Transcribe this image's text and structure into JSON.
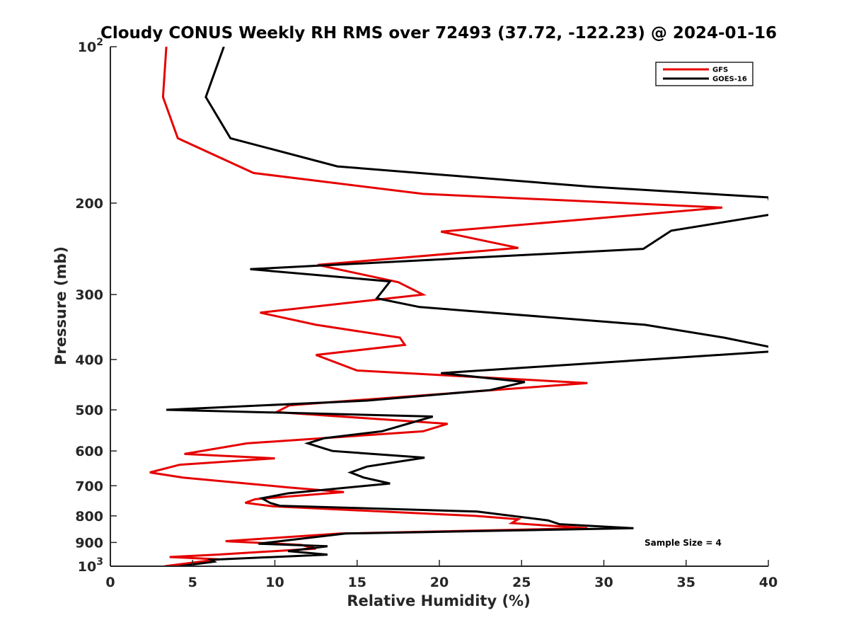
{
  "chart_data": {
    "type": "line",
    "title": "Cloudy CONUS Weekly RH RMS over 72493 (37.72, -122.23) @ 2024-01-16",
    "xlabel": "Relative Humidity (%)",
    "ylabel": "Pressure (mb)",
    "xlim": [
      0,
      40
    ],
    "ylim": [
      100,
      1000
    ],
    "yscale": "log",
    "y_reversed": true,
    "x_ticks": [
      "0",
      "5",
      "10",
      "15",
      "20",
      "25",
      "30",
      "35",
      "40"
    ],
    "y_ticks": [
      {
        "value": 100,
        "base": "10",
        "exp": "2"
      },
      {
        "value": 200,
        "label": "200"
      },
      {
        "value": 300,
        "label": "300"
      },
      {
        "value": 400,
        "label": "400"
      },
      {
        "value": 500,
        "label": "500"
      },
      {
        "value": 600,
        "label": "600"
      },
      {
        "value": 700,
        "label": "700"
      },
      {
        "value": 800,
        "label": "800"
      },
      {
        "value": 900,
        "label": "900"
      },
      {
        "value": 1000,
        "base": "10",
        "exp": "3"
      }
    ],
    "legend_position": "top-right",
    "annotation": "Sample Size = 4",
    "grid": false,
    "series": [
      {
        "name": "GFS",
        "color": "#e60000",
        "points": [
          [
            3.4,
            100
          ],
          [
            3.2,
            125
          ],
          [
            4.1,
            150
          ],
          [
            8.7,
            175
          ],
          [
            19.0,
            192
          ],
          [
            37.2,
            204
          ],
          [
            20.1,
            227
          ],
          [
            24.8,
            244
          ],
          [
            12.6,
            263
          ],
          [
            17.5,
            284
          ],
          [
            19.0,
            300
          ],
          [
            9.1,
            325
          ],
          [
            12.5,
            343
          ],
          [
            17.6,
            363
          ],
          [
            17.9,
            375
          ],
          [
            12.5,
            392
          ],
          [
            15.0,
            420
          ],
          [
            29.0,
            444
          ],
          [
            10.9,
            490
          ],
          [
            10.1,
            505
          ],
          [
            20.5,
            532
          ],
          [
            19.0,
            550
          ],
          [
            8.3,
            580
          ],
          [
            4.5,
            608
          ],
          [
            10.0,
            620
          ],
          [
            4.2,
            638
          ],
          [
            2.4,
            660
          ],
          [
            4.4,
            675
          ],
          [
            10.8,
            705
          ],
          [
            14.2,
            720
          ],
          [
            8.8,
            743
          ],
          [
            8.2,
            755
          ],
          [
            9.9,
            767
          ],
          [
            22.2,
            800
          ],
          [
            24.8,
            812
          ],
          [
            24.4,
            826
          ],
          [
            29.0,
            845
          ],
          [
            14.0,
            865
          ],
          [
            7.0,
            895
          ],
          [
            11.6,
            910
          ],
          [
            12.5,
            925
          ],
          [
            6.5,
            950
          ],
          [
            3.6,
            960
          ],
          [
            6.6,
            970
          ],
          [
            3.3,
            1000
          ]
        ]
      },
      {
        "name": "GOES-16",
        "color": "#000000",
        "points": [
          [
            6.9,
            100
          ],
          [
            5.8,
            125
          ],
          [
            7.3,
            150
          ],
          [
            13.8,
            170
          ],
          [
            29.2,
            186
          ],
          [
            40.0,
            195
          ],
          [
            40.3,
            210
          ],
          [
            34.1,
            226
          ],
          [
            32.4,
            245
          ],
          [
            8.5,
            268
          ],
          [
            17.0,
            283
          ],
          [
            16.2,
            305
          ],
          [
            18.8,
            317
          ],
          [
            32.5,
            343
          ],
          [
            37.3,
            363
          ],
          [
            40.2,
            379
          ],
          [
            40.2,
            386
          ],
          [
            20.1,
            425
          ],
          [
            25.2,
            442
          ],
          [
            23.1,
            458
          ],
          [
            15.6,
            480
          ],
          [
            3.4,
            500
          ],
          [
            19.6,
            515
          ],
          [
            16.5,
            550
          ],
          [
            13.0,
            567
          ],
          [
            12.0,
            580
          ],
          [
            13.5,
            600
          ],
          [
            19.1,
            618
          ],
          [
            15.6,
            643
          ],
          [
            14.6,
            660
          ],
          [
            15.4,
            675
          ],
          [
            17.0,
            693
          ],
          [
            10.8,
            724
          ],
          [
            9.2,
            740
          ],
          [
            9.7,
            755
          ],
          [
            10.3,
            765
          ],
          [
            22.3,
            785
          ],
          [
            26.6,
            816
          ],
          [
            27.3,
            830
          ],
          [
            31.8,
            845
          ],
          [
            14.3,
            865
          ],
          [
            9.0,
            905
          ],
          [
            13.2,
            915
          ],
          [
            10.8,
            935
          ],
          [
            13.2,
            950
          ],
          [
            6.1,
            972
          ],
          [
            6.3,
            980
          ],
          [
            4.2,
            1000
          ]
        ]
      }
    ]
  }
}
